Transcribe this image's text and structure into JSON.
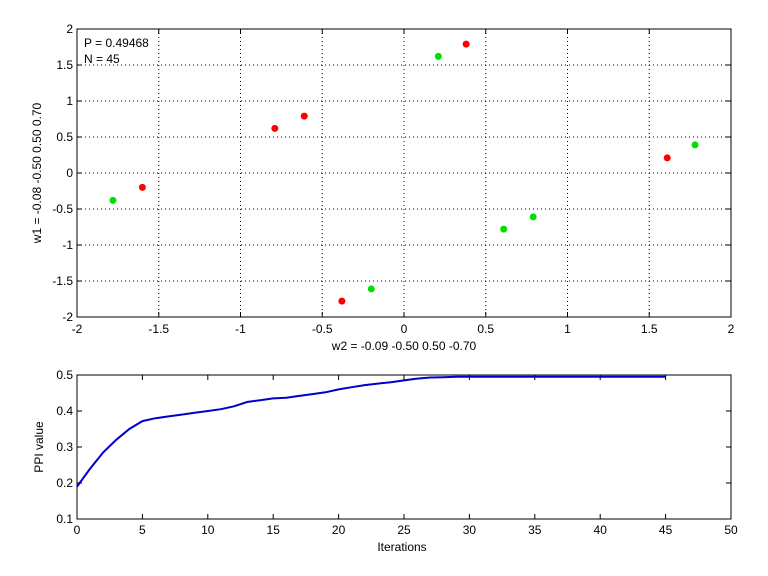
{
  "chart_data": [
    {
      "type": "scatter",
      "title": "",
      "xlabel": "w2 = -0.09  -0.50  0.50  -0.70",
      "ylabel": "w1 = -0.08  -0.50  0.50  0.70",
      "xlim": [
        -2,
        2
      ],
      "ylim": [
        -2,
        2
      ],
      "xticks": [
        "-2",
        "-1.5",
        "-1",
        "-0.5",
        "0",
        "0.5",
        "1",
        "1.5",
        "2"
      ],
      "yticks": [
        "-2",
        "-1.5",
        "-1",
        "-0.5",
        "0",
        "0.5",
        "1",
        "1.5",
        "2"
      ],
      "grid": true,
      "annotations": [
        "P = 0.49468",
        "N = 45"
      ],
      "series": [
        {
          "color": "#ff0000",
          "points": [
            {
              "x": -1.6,
              "y": -0.2
            },
            {
              "x": -0.79,
              "y": 0.62
            },
            {
              "x": -0.61,
              "y": 0.79
            },
            {
              "x": -0.38,
              "y": -1.78
            },
            {
              "x": 0.38,
              "y": 1.79
            },
            {
              "x": 1.61,
              "y": 0.21
            }
          ]
        },
        {
          "color": "#00e000",
          "points": [
            {
              "x": -1.78,
              "y": -0.38
            },
            {
              "x": -0.2,
              "y": -1.61
            },
            {
              "x": 0.21,
              "y": 1.62
            },
            {
              "x": 0.61,
              "y": -0.78
            },
            {
              "x": 0.79,
              "y": -0.61
            },
            {
              "x": 1.78,
              "y": 0.39
            }
          ]
        }
      ]
    },
    {
      "type": "line",
      "title": "",
      "xlabel": "Iterations",
      "ylabel": "PPI value",
      "xlim": [
        0,
        50
      ],
      "ylim": [
        0.1,
        0.5
      ],
      "xticks": [
        "0",
        "5",
        "10",
        "15",
        "20",
        "25",
        "30",
        "35",
        "40",
        "45",
        "50"
      ],
      "yticks": [
        "0.1",
        "0.2",
        "0.3",
        "0.4",
        "0.5"
      ],
      "grid": false,
      "series": [
        {
          "color": "#0000cc",
          "x": [
            0,
            1,
            2,
            3,
            4,
            5,
            6,
            7,
            8,
            9,
            10,
            11,
            12,
            13,
            14,
            15,
            16,
            17,
            18,
            19,
            20,
            21,
            22,
            23,
            24,
            25,
            26,
            27,
            28,
            29,
            30,
            31,
            32,
            33,
            34,
            35,
            36,
            37,
            38,
            39,
            40,
            41,
            42,
            43,
            44,
            45
          ],
          "values": [
            0.19,
            0.24,
            0.285,
            0.32,
            0.35,
            0.372,
            0.38,
            0.385,
            0.39,
            0.395,
            0.4,
            0.405,
            0.413,
            0.425,
            0.43,
            0.435,
            0.437,
            0.442,
            0.447,
            0.452,
            0.46,
            0.466,
            0.472,
            0.476,
            0.48,
            0.485,
            0.49,
            0.493,
            0.494,
            0.495,
            0.495,
            0.495,
            0.495,
            0.495,
            0.495,
            0.495,
            0.495,
            0.495,
            0.495,
            0.495,
            0.495,
            0.495,
            0.495,
            0.495,
            0.495,
            0.495
          ]
        }
      ]
    }
  ]
}
